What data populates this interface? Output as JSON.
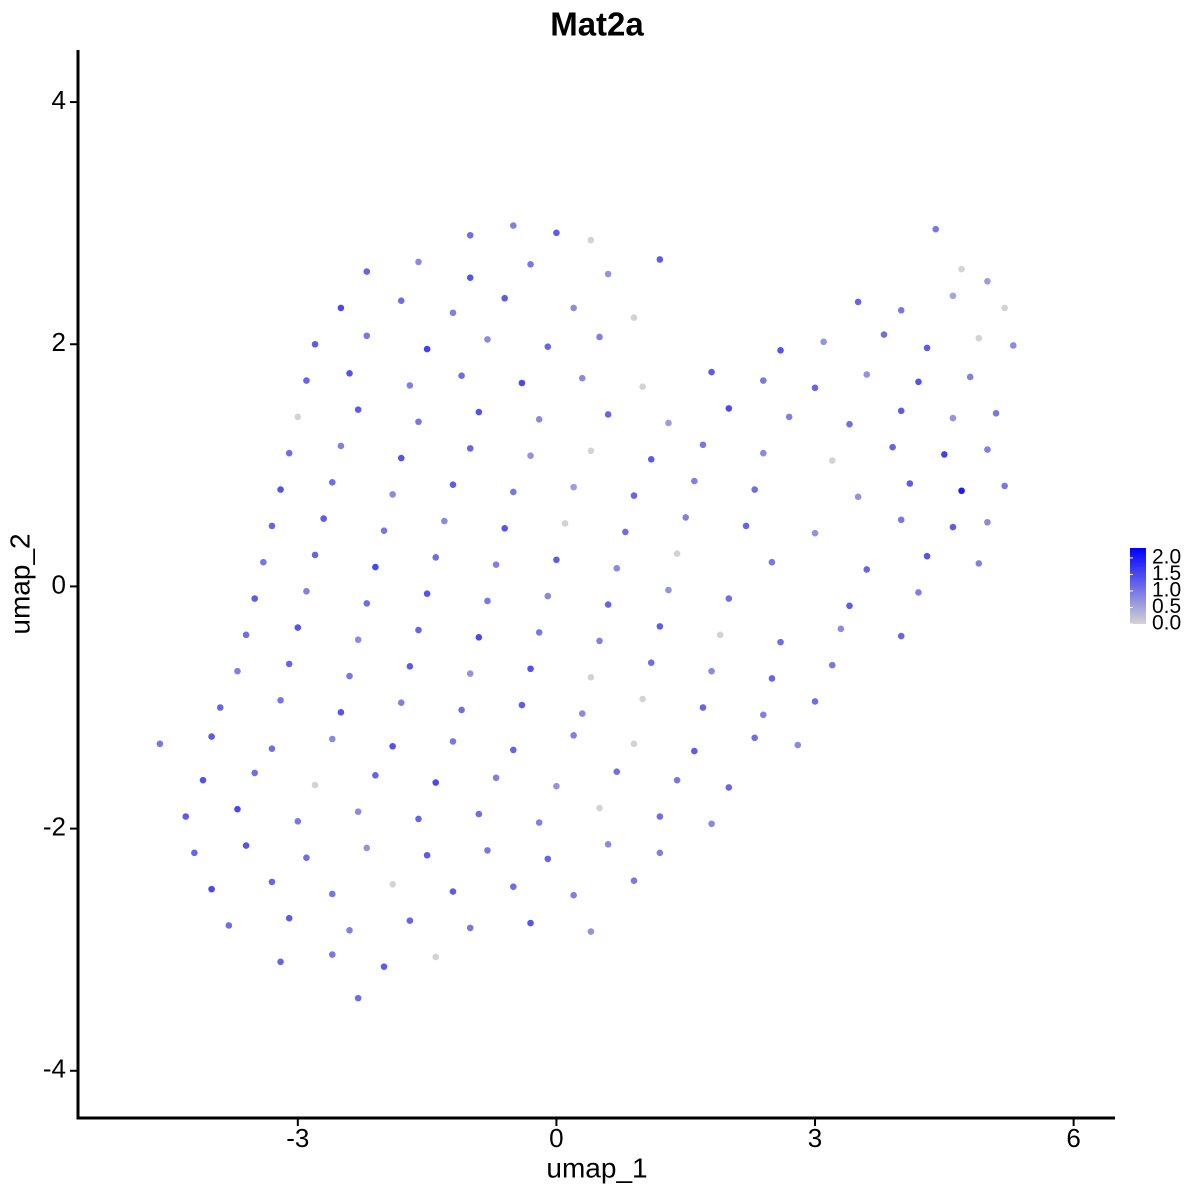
{
  "chart_data": {
    "type": "scatter",
    "title": "Mat2a",
    "x_label": "umap_1",
    "y_label": "umap_2",
    "xlim": [
      -5.55,
      6.48
    ],
    "ylim": [
      -4.39,
      4.43
    ],
    "xticks": [
      -3,
      0,
      3,
      6
    ],
    "yticks": [
      -4,
      -2,
      0,
      2,
      4
    ],
    "color_scale": [
      "#d3d3d3",
      "#0000ff"
    ],
    "colorlim": [
      0,
      2.3
    ],
    "color_ticks": [
      {
        "value": 0,
        "label": "0.0"
      },
      0.5,
      {
        "value": 1,
        "label": "1.0"
      },
      1.5,
      {
        "value": 2,
        "label": "2.0"
      }
    ],
    "legend": "right",
    "x": [
      -1.0,
      -0.5,
      0.0,
      0.4,
      4.4,
      -2.2,
      -1.6,
      -1.0,
      -0.3,
      0.6,
      1.2,
      4.7,
      5.0,
      -2.5,
      -1.8,
      -1.2,
      -0.6,
      0.2,
      0.9,
      3.5,
      4.0,
      4.6,
      5.2,
      -2.8,
      -2.2,
      -1.5,
      -0.8,
      -0.1,
      0.5,
      2.6,
      3.1,
      3.8,
      4.3,
      4.9,
      5.3,
      -2.9,
      -2.4,
      -1.7,
      -1.1,
      -0.4,
      0.3,
      1.0,
      1.8,
      2.4,
      3.0,
      3.6,
      4.2,
      4.8,
      -3.0,
      -2.3,
      -1.6,
      -0.9,
      -0.2,
      0.6,
      1.3,
      2.0,
      2.7,
      3.4,
      4.0,
      4.6,
      5.1,
      -3.1,
      -2.5,
      -1.8,
      -1.0,
      -0.3,
      0.4,
      1.1,
      1.7,
      2.4,
      3.2,
      3.9,
      4.5,
      5.0,
      -3.2,
      -2.6,
      -1.9,
      -1.2,
      -0.5,
      0.2,
      0.9,
      1.6,
      2.3,
      3.5,
      4.1,
      4.7,
      5.2,
      -3.3,
      -2.7,
      -2.0,
      -1.3,
      -0.6,
      0.1,
      0.8,
      1.5,
      2.2,
      3.0,
      4.0,
      4.6,
      5.0,
      -3.4,
      -2.8,
      -2.1,
      -1.4,
      -0.7,
      0.0,
      0.7,
      1.4,
      2.5,
      3.6,
      4.3,
      4.9,
      -3.5,
      -2.9,
      -2.2,
      -1.5,
      -0.8,
      -0.1,
      0.6,
      1.3,
      2.0,
      3.4,
      4.2,
      -3.6,
      -3.0,
      -2.3,
      -1.6,
      -0.9,
      -0.2,
      0.5,
      1.2,
      1.9,
      2.6,
      3.3,
      4.0,
      -3.7,
      -3.1,
      -2.4,
      -1.7,
      -1.0,
      -0.3,
      0.4,
      1.1,
      1.8,
      2.5,
      3.2,
      -3.9,
      -3.2,
      -2.5,
      -1.8,
      -1.1,
      -0.4,
      0.3,
      1.0,
      1.7,
      2.4,
      3.0,
      -4.6,
      -4.0,
      -3.3,
      -2.6,
      -1.9,
      -1.2,
      -0.5,
      0.2,
      0.9,
      1.6,
      2.3,
      2.8,
      -4.1,
      -3.5,
      -2.8,
      -2.1,
      -1.4,
      -0.7,
      0.0,
      0.7,
      1.4,
      2.0,
      -4.3,
      -3.7,
      -3.0,
      -2.3,
      -1.6,
      -0.9,
      -0.2,
      0.5,
      1.2,
      1.8,
      -4.2,
      -3.6,
      -2.9,
      -2.2,
      -1.5,
      -0.8,
      -0.1,
      0.6,
      1.2,
      -4.0,
      -3.3,
      -2.6,
      -1.9,
      -1.2,
      -0.5,
      0.2,
      0.9,
      -3.8,
      -3.1,
      -2.4,
      -1.7,
      -1.0,
      -0.3,
      0.4,
      -3.2,
      -2.6,
      -2.0,
      -1.4,
      -2.3
    ],
    "values": [
      2.9,
      2.98,
      2.92,
      2.86,
      2.95,
      2.6,
      2.68,
      2.55,
      2.66,
      2.58,
      2.7,
      2.62,
      2.52,
      2.3,
      2.36,
      2.26,
      2.38,
      2.3,
      2.22,
      2.35,
      2.28,
      2.4,
      2.3,
      2.0,
      2.07,
      1.96,
      2.04,
      1.98,
      2.06,
      1.95,
      2.02,
      2.08,
      1.97,
      2.05,
      1.99,
      1.7,
      1.76,
      1.66,
      1.74,
      1.68,
      1.72,
      1.65,
      1.77,
      1.7,
      1.64,
      1.75,
      1.69,
      1.73,
      1.4,
      1.46,
      1.36,
      1.44,
      1.38,
      1.42,
      1.35,
      1.47,
      1.4,
      1.34,
      1.45,
      1.39,
      1.43,
      1.1,
      1.16,
      1.06,
      1.14,
      1.08,
      1.12,
      1.05,
      1.17,
      1.1,
      1.04,
      1.15,
      1.09,
      1.13,
      0.8,
      0.86,
      0.76,
      0.84,
      0.78,
      0.82,
      0.75,
      0.87,
      0.8,
      0.74,
      0.85,
      0.79,
      0.83,
      0.5,
      0.56,
      0.46,
      0.54,
      0.48,
      0.52,
      0.45,
      0.57,
      0.5,
      0.44,
      0.55,
      0.49,
      0.53,
      0.2,
      0.26,
      0.16,
      0.24,
      0.18,
      0.22,
      0.15,
      0.27,
      0.2,
      0.14,
      0.25,
      0.19,
      -0.1,
      -0.04,
      -0.14,
      -0.06,
      -0.12,
      -0.08,
      -0.15,
      -0.03,
      -0.1,
      -0.16,
      -0.05,
      -0.4,
      -0.34,
      -0.44,
      -0.36,
      -0.42,
      -0.38,
      -0.45,
      -0.33,
      -0.4,
      -0.46,
      -0.35,
      -0.41,
      -0.7,
      -0.64,
      -0.74,
      -0.66,
      -0.72,
      -0.68,
      -0.75,
      -0.63,
      -0.7,
      -0.76,
      -0.65,
      -1.0,
      -0.94,
      -1.04,
      -0.96,
      -1.02,
      -0.98,
      -1.05,
      -0.93,
      -1.0,
      -1.06,
      -0.95,
      -1.3,
      -1.24,
      -1.34,
      -1.26,
      -1.32,
      -1.28,
      -1.35,
      -1.23,
      -1.3,
      -1.36,
      -1.25,
      -1.31,
      -1.6,
      -1.54,
      -1.64,
      -1.56,
      -1.62,
      -1.58,
      -1.65,
      -1.53,
      -1.6,
      -1.66,
      -1.9,
      -1.84,
      -1.94,
      -1.86,
      -1.92,
      -1.88,
      -1.95,
      -1.83,
      -1.9,
      -1.96,
      -2.2,
      -2.14,
      -2.24,
      -2.16,
      -2.22,
      -2.18,
      -2.25,
      -2.13,
      -2.2,
      -2.5,
      -2.44,
      -2.54,
      -2.46,
      -2.52,
      -2.48,
      -2.55,
      -2.43,
      -2.8,
      -2.74,
      -2.84,
      -2.76,
      -2.82,
      -2.78,
      -2.85,
      -3.1,
      -3.04,
      -3.14,
      -3.06,
      -3.4
    ],
    "color_values": [
      1.1,
      0.9,
      1.3,
      0,
      1.0,
      1.2,
      0.8,
      1.4,
      1.0,
      0.7,
      1.3,
      0,
      0.6,
      1.5,
      1.1,
      0.9,
      1.3,
      0.8,
      0,
      1.2,
      1.0,
      0.5,
      0,
      1.3,
      1.0,
      1.6,
      0.8,
      1.2,
      0.9,
      1.4,
      0.7,
      1.1,
      1.3,
      0,
      0.8,
      1.2,
      1.4,
      0.9,
      1.1,
      1.5,
      0.8,
      0,
      1.3,
      1.0,
      1.2,
      0.7,
      1.4,
      0.9,
      0,
      1.3,
      1.0,
      1.4,
      0.8,
      1.2,
      0.6,
      1.5,
      0.9,
      1.1,
      1.3,
      0.7,
      1.0,
      1.1,
      0.9,
      1.4,
      1.2,
      0.7,
      0,
      1.3,
      1.0,
      0.8,
      0,
      1.2,
      1.6,
      0.9,
      1.4,
      1.1,
      0.8,
      1.3,
      1.0,
      0.6,
      1.2,
      0.9,
      1.1,
      0.7,
      1.3,
      2.0,
      1.0,
      1.2,
      1.3,
      1.0,
      0.8,
      1.4,
      0,
      1.1,
      0.9,
      1.2,
      0.7,
      1.0,
      1.3,
      0.8,
      1.0,
      1.2,
      1.5,
      1.1,
      0.9,
      1.3,
      0.8,
      0,
      1.0,
      1.2,
      1.4,
      0.9,
      1.3,
      0.9,
      1.1,
      1.4,
      1.0,
      0.8,
      1.2,
      0.7,
      1.1,
      1.3,
      0.9,
      1.1,
      1.4,
      0.8,
      1.2,
      1.5,
      1.0,
      0.9,
      1.3,
      0,
      1.1,
      0.8,
      1.2,
      0.9,
      1.2,
      1.0,
      1.3,
      0.7,
      1.4,
      0,
      1.1,
      0.8,
      1.2,
      1.0,
      1.2,
      1.0,
      1.4,
      0.9,
      1.1,
      1.3,
      0.8,
      0,
      1.2,
      0.9,
      1.1,
      1.0,
      1.3,
      1.1,
      0.8,
      1.4,
      1.0,
      1.2,
      0.9,
      0,
      1.3,
      1.1,
      0.8,
      1.4,
      1.1,
      0,
      1.2,
      1.5,
      0.9,
      0.7,
      1.1,
      1.0,
      1.2,
      1.3,
      1.5,
      1.0,
      0.8,
      1.2,
      1.1,
      0.9,
      0,
      1.1,
      0.8,
      1.2,
      1.4,
      1.1,
      0.7,
      1.3,
      1.0,
      1.2,
      0.8,
      0.9,
      1.5,
      1.2,
      1.0,
      0,
      1.3,
      1.1,
      0.9,
      1.0,
      1.1,
      1.3,
      0.9,
      1.2,
      1.0,
      1.4,
      0.7,
      1.2,
      1.0,
      1.3,
      0,
      1.1
    ]
  }
}
